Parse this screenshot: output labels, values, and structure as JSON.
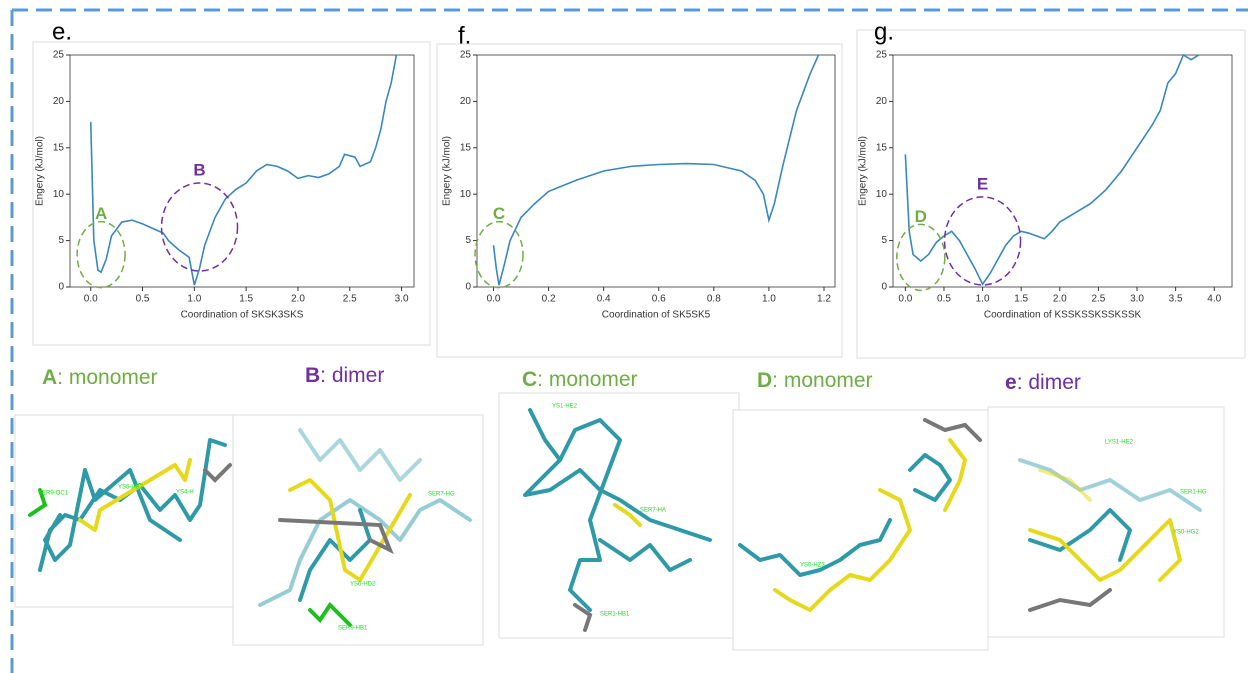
{
  "chart_data": [
    {
      "type": "line",
      "panel": "e.",
      "xlabel": "Coordination of SKSK3SKS",
      "ylabel": "Engery (kJ/mol)",
      "color": "#3a87bd",
      "x": [
        0.0,
        0.03,
        0.07,
        0.1,
        0.15,
        0.2,
        0.3,
        0.4,
        0.5,
        0.6,
        0.7,
        0.75,
        0.85,
        0.95,
        1.0,
        1.05,
        1.1,
        1.2,
        1.3,
        1.4,
        1.5,
        1.6,
        1.7,
        1.8,
        1.9,
        2.0,
        2.1,
        2.2,
        2.3,
        2.4,
        2.45,
        2.55,
        2.6,
        2.7,
        2.75,
        2.8,
        2.85,
        2.9,
        2.95
      ],
      "values": [
        17.8,
        5,
        1.8,
        1.6,
        3,
        5.5,
        7,
        7.2,
        6.8,
        6.3,
        5.8,
        5,
        4,
        3.2,
        0.2,
        2,
        4.5,
        7.5,
        9.5,
        10.5,
        11.2,
        12.5,
        13.2,
        13,
        12.5,
        11.7,
        12,
        11.8,
        12.2,
        13,
        14.3,
        14,
        13,
        13.5,
        15,
        17,
        20,
        22,
        25
      ],
      "xlim": [
        -0.2,
        3.12
      ],
      "ylim": [
        0,
        25
      ],
      "xticks": [
        {
          "value": 0,
          "label": "0.0"
        },
        0.5,
        {
          "value": 1,
          "label": "1.0"
        },
        1.5,
        {
          "value": 2,
          "label": "2.0"
        },
        2.5,
        {
          "value": 3,
          "label": "3.0"
        }
      ],
      "yticks": [
        0,
        5,
        10,
        15,
        20,
        25
      ],
      "annotations": [
        {
          "text": "A",
          "x": 0.1,
          "y": 7.8,
          "color": "#70ad47"
        },
        {
          "text": "B",
          "x": 1.05,
          "y": 12.5,
          "color": "#7030a0"
        }
      ]
    },
    {
      "type": "line",
      "panel": "f.",
      "xlabel": "Coordination of SK5SK5",
      "ylabel": "Engery (kJ/mol)",
      "color": "#3a87bd",
      "x": [
        0.0,
        0.01,
        0.02,
        0.04,
        0.06,
        0.1,
        0.15,
        0.2,
        0.3,
        0.4,
        0.5,
        0.6,
        0.7,
        0.8,
        0.9,
        0.95,
        0.98,
        1.0,
        1.02,
        1.05,
        1.1,
        1.15,
        1.18
      ],
      "values": [
        4.5,
        2,
        0.2,
        2.5,
        5,
        7.5,
        9,
        10.3,
        11.5,
        12.5,
        13,
        13.2,
        13.3,
        13.2,
        12.5,
        11.5,
        10,
        7.2,
        9,
        13,
        19,
        23,
        25
      ],
      "xlim": [
        -0.06,
        1.24
      ],
      "ylim": [
        0,
        25
      ],
      "xticks": [
        {
          "value": 0,
          "label": "0.0"
        },
        0.2,
        0.4,
        0.6,
        0.8,
        {
          "value": 1,
          "label": "1.0"
        },
        1.2
      ],
      "yticks": [
        0,
        5,
        10,
        15,
        20,
        25
      ],
      "annotations": [
        {
          "text": "C",
          "x": 0.02,
          "y": 7.8,
          "color": "#70ad47"
        }
      ]
    },
    {
      "type": "line",
      "panel": "g.",
      "xlabel": "Coordination of KSSKSSKSSKSSK",
      "ylabel": "Engery (kJ/mol)",
      "color": "#3a87bd",
      "x": [
        0.0,
        0.05,
        0.1,
        0.2,
        0.3,
        0.4,
        0.5,
        0.6,
        0.7,
        0.8,
        0.9,
        1.0,
        1.1,
        1.2,
        1.3,
        1.4,
        1.5,
        1.6,
        1.7,
        1.8,
        1.9,
        2.0,
        2.2,
        2.4,
        2.6,
        2.8,
        3.0,
        3.2,
        3.3,
        3.4,
        3.5,
        3.6,
        3.7,
        3.8
      ],
      "values": [
        14.3,
        6,
        3.5,
        2.8,
        3.5,
        4.8,
        5.5,
        6,
        5,
        3.5,
        2,
        0.3,
        1.5,
        3,
        4.5,
        5.5,
        6,
        5.8,
        5.5,
        5.2,
        6,
        7,
        8,
        9,
        10.5,
        12.5,
        15,
        17.5,
        19,
        22,
        23,
        25,
        24.5,
        25
      ],
      "xlim": [
        -0.16,
        4.23
      ],
      "ylim": [
        0,
        25
      ],
      "xticks": [
        {
          "value": 0,
          "label": "0.0"
        },
        0.5,
        {
          "value": 1,
          "label": "1.0"
        },
        1.5,
        {
          "value": 2,
          "label": "2.0"
        },
        2.5,
        {
          "value": 3,
          "label": "3.0"
        },
        3.5,
        {
          "value": 4,
          "label": "4.0"
        }
      ],
      "yticks": [
        0,
        5,
        10,
        15,
        20,
        25
      ],
      "annotations": [
        {
          "text": "D",
          "x": 0.2,
          "y": 7.5,
          "color": "#70ad47"
        },
        {
          "text": "E",
          "x": 1.0,
          "y": 11,
          "color": "#7030a0"
        }
      ]
    }
  ],
  "captions": [
    {
      "letter": "A",
      "text": ": monomer",
      "color": "#70ad47"
    },
    {
      "letter": "B",
      "text": ": dimer",
      "color": "#7030a0"
    },
    {
      "letter": "C",
      "text": ": monomer",
      "color": "#70ad47"
    },
    {
      "letter": "D",
      "text": ": monomer",
      "color": "#70ad47"
    },
    {
      "letter": "e",
      "text": ": dimer",
      "color": "#7030a0"
    }
  ],
  "atom_labels": [
    "SER9-OC1",
    "YS6-HB2",
    "YS4-H",
    "SER7-HG",
    "YS6-HD2",
    "SER9-HB1",
    "YS1-HE2",
    "SER7-HA",
    "SER1-HB1",
    "YS0-HZ3",
    "LYS1-HE2",
    "SER1-HG",
    "YS0-HG2"
  ]
}
